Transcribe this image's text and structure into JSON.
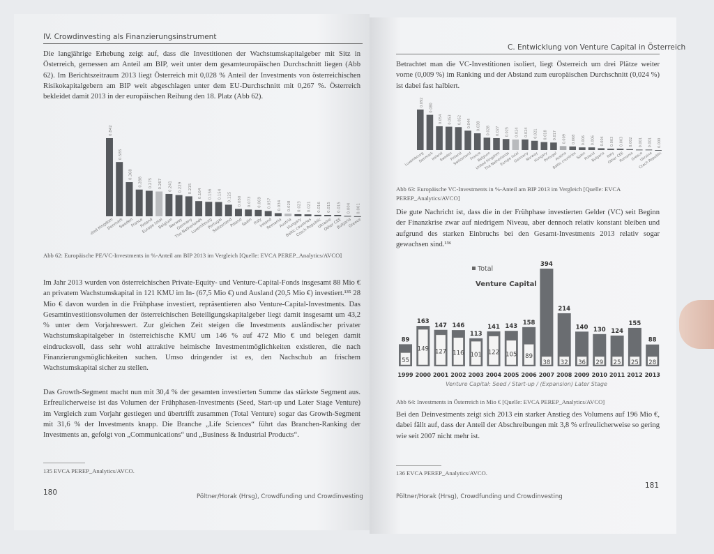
{
  "left_page": {
    "header": "IV. Crowdinvesting als Finanzierungsinstrument",
    "paragraph_1": "Die langjährige Erhebung zeigt auf, dass die Investitionen der Wachstumskapitalgeber mit Sitz in Österreich, gemessen am Anteil am BIP, weit unter dem gesamteuropäischen Durchschnitt liegen (Abb 62). Im Berichtszeitraum 2013 liegt Österreich mit 0,028 % Anteil der Investments von österreichischen Risikokapitalgebern am BIP weit abgeschlagen unter dem EU-Durchschnitt mit 0,267 %. Österreich bekleidet damit 2013 in der europäischen Reihung den 18. Platz (Abb 62).",
    "caption_62": "Abb 62: Europäische PE/VC-Investments in %-Anteil am BIP 2013 im Vergleich [Quelle: EVCA PEREP_Analytics/AVCO]",
    "paragraph_2": "Im Jahr 2013 wurden von österreichischen Private-Equity- und Venture-Capital-Fonds insgesamt 88 Mio € an privatem Wachstumskapital in 121 KMU im In- (67,5 Mio €) und Ausland (20,5 Mio €) investiert.¹³⁵ 28 Mio € davon wurden in die Frühphase investiert, repräsentieren also Venture-Capital-Investments. Das Gesamtinvestitionsvolumen der österreichischen Beteiligungskapitalgeber liegt damit insgesamt um 43,2 % unter dem Vorjahreswert. Zur gleichen Zeit steigen die Investments ausländischer privater Wachstumskapitalgeber in österreichische KMU um 146 % auf 472 Mio € und belegen damit eindrucksvoll, dass sehr wohl attraktive heimische Investmentmöglichkeiten existieren, die nach Finanzierungsmöglichkeiten suchen. Umso dringender ist es, den Nachschub an frischem Wachstumskapital sicher zu stellen.",
    "paragraph_3": "Das Growth-Segment macht nun mit 30,4 % der gesamten investierten Summe das stärkste Segment aus. Erfreulicherweise ist das Volumen der Frühphasen-Investments (Seed, Start-up und Later Stage Venture) im Vergleich zum Vorjahr gestiegen und übertrifft zusammen (Total Venture) sogar das Growth-Segment mit 31,6 % der Investments knapp. Die Branche „Life Sciences“ führt das Branchen-Ranking der Investments an, gefolgt von „Communications“ und „Business & Industrial Products“.",
    "footnote": "135   EVCA PEREP_Analytics/AVCO.",
    "page_number": "180",
    "footer": "Pöltner/Horak (Hrsg), Crowdfunding und Crowdinvesting"
  },
  "right_page": {
    "header": "C. Entwicklung von Venture Capital in Österreich",
    "paragraph_1": "Betrachtet man die VC-Investitionen isoliert, liegt Österreich um drei Plätze weiter vorne (0,009 %) im Ranking und der Abstand zum europäischen Durchschnitt (0,024 %) ist dabei fast halbiert.",
    "caption_63": "Abb 63: Europäische VC-Investments in %-Anteil am BIP 2013 im Vergleich [Quelle: EVCA PEREP_Analytics/AVCO]",
    "paragraph_2": "Die gute Nachricht ist, dass die in der Frühphase investierten Gelder (VC) seit Beginn der Finanzkrise zwar auf niedrigem Niveau, aber dennoch relativ konstant bleiben und aufgrund des starken Einbruchs bei den Gesamt-Investments 2013 relativ sogar gewachsen sind.¹³⁶",
    "caption_64": "Abb 64: Investments in Österreich in Mio € [Quelle: EVCA PEREP_Analytics/AVCO]",
    "paragraph_3": "Bei den Deinvestments zeigt sich 2013 ein starker Anstieg des Volumens auf 196 Mio €, dabei fällt auf, dass der Anteil der Abschreibungen mit 3,8 % erfreulicherweise so gering wie seit 2007 nicht mehr ist.",
    "footnote": "136   EVCA PEREP_Analytics/AVCO.",
    "page_number": "181",
    "footer": "Pöltner/Horak (Hrsg), Crowdfunding und Crowdinvesting"
  },
  "chart_data": [
    {
      "type": "bar",
      "categories": [
        "United Kingdom",
        "Denmark",
        "Sweden",
        "France",
        "Finland",
        "Europe total",
        "Belgium",
        "Norway",
        "Germany",
        "The Netherlands",
        "Luxembourg",
        "Portugal",
        "Switzerland",
        "Poland",
        "Spain",
        "Italy",
        "Ireland",
        "Romania",
        "Austria",
        "Hungary",
        "Baltic countries",
        "Czech Republic",
        "Ukraine",
        "Other CEE",
        "Bulgaria",
        "Greece"
      ],
      "values": [
        0.842,
        0.585,
        0.368,
        0.288,
        0.275,
        0.267,
        0.241,
        0.229,
        0.215,
        0.164,
        0.156,
        0.154,
        0.125,
        0.08,
        0.073,
        0.069,
        0.057,
        0.034,
        0.028,
        0.023,
        0.021,
        0.016,
        0.015,
        0.015,
        0.004,
        0.001
      ],
      "highlight": {
        "Europe total": "#b9bbbe",
        "Austria": "#b9bbbe"
      },
      "bar_color": "#55585c",
      "grid": false
    },
    {
      "type": "bar",
      "categories": [
        "Luxembourg",
        "Denmark",
        "Ireland",
        "Sweden",
        "Finland",
        "Switzerland",
        "France",
        "Belgium",
        "United Kingdom",
        "The Netherlands",
        "Europe total",
        "Germany",
        "Norway",
        "Hungary",
        "Portugal",
        "Austria",
        "Baltic countries",
        "Spain",
        "Poland",
        "Bulgaria",
        "Italy",
        "Other CEE",
        "Romania",
        "Greece",
        "Ukraine",
        "Czech Republic"
      ],
      "values": [
        0.092,
        0.08,
        0.054,
        0.053,
        0.052,
        0.044,
        0.038,
        0.028,
        0.027,
        0.025,
        0.024,
        0.024,
        0.021,
        0.018,
        0.017,
        0.009,
        0.008,
        0.006,
        0.006,
        0.004,
        0.003,
        0.003,
        0.002,
        0.001,
        0.001,
        0.0
      ],
      "highlight": {
        "Europe total": "#b9bbbe",
        "Austria": "#a9abae"
      },
      "bar_color": "#5a5d61",
      "grid": false
    },
    {
      "type": "bar",
      "title": "Venture Capital",
      "xlabel": "Venture Capital: Seed / Start-up / (Expansion) Later Stage",
      "legend": [
        "Total"
      ],
      "legend_position": "top-left",
      "categories": [
        "1999",
        "2000",
        "2001",
        "2002",
        "2003",
        "2004",
        "2005",
        "2006",
        "2007",
        "2008",
        "2009",
        "2010",
        "2011",
        "2012",
        "2013"
      ],
      "series": [
        {
          "name": "Total",
          "values": [
            89,
            163,
            147,
            146,
            113,
            141,
            143,
            158,
            394,
            214,
            140,
            130,
            124,
            155,
            88
          ]
        },
        {
          "values": [
            55,
            149,
            127,
            116,
            101,
            122,
            105,
            89,
            38,
            32,
            36,
            29,
            25,
            25,
            28
          ]
        }
      ],
      "bar_color": "#5c5f63",
      "grid": false
    }
  ]
}
